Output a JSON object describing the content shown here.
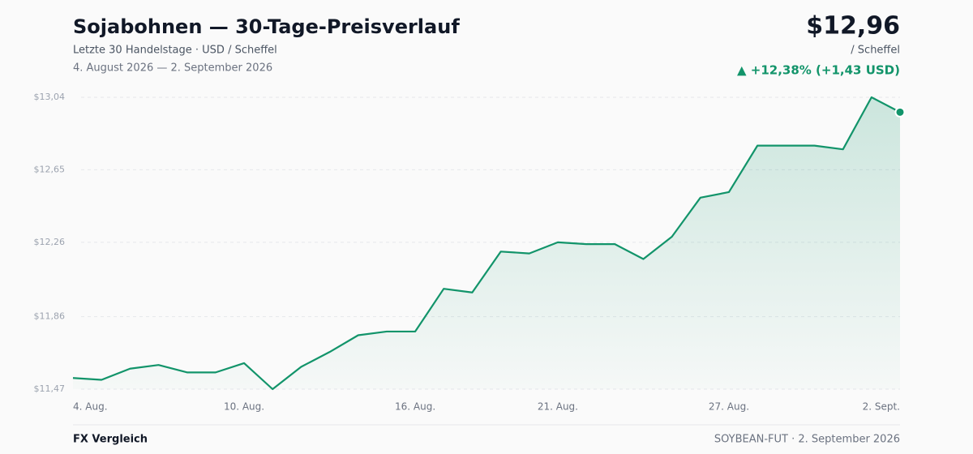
{
  "chart_data": {
    "type": "line",
    "title": "Sojabohnen — 30-Tage-Preisverlauf",
    "subtitle": "Letzte 30 Handelstage · USD / Scheffel",
    "date_range": "4. August 2026 — 2. September 2026",
    "price_label": "$12,96",
    "unit_label": "/ Scheffel",
    "change_label": "▲ +12,38% (+1,43 USD)",
    "categories": [
      "4. Aug.",
      null,
      null,
      null,
      null,
      null,
      "10. Aug.",
      null,
      null,
      null,
      null,
      null,
      "16. Aug.",
      null,
      null,
      null,
      null,
      "21. Aug.",
      null,
      null,
      null,
      null,
      null,
      "27. Aug.",
      null,
      null,
      null,
      null,
      null,
      "2. Sept."
    ],
    "values": [
      11.53,
      11.52,
      11.58,
      11.6,
      11.56,
      11.56,
      11.61,
      11.47,
      11.59,
      11.67,
      11.76,
      11.78,
      11.78,
      12.01,
      11.99,
      12.21,
      12.2,
      12.26,
      12.25,
      12.25,
      12.17,
      12.29,
      12.5,
      12.53,
      12.78,
      12.78,
      12.78,
      12.76,
      13.04,
      12.96
    ],
    "color": "#12946a",
    "ylim": [
      11.47,
      13.04
    ],
    "yticks": [
      {
        "value": 11.47,
        "label": "$11,47"
      },
      {
        "value": 11.86,
        "label": "$11,86"
      },
      {
        "value": 12.26,
        "label": "$12,26"
      },
      {
        "value": 12.65,
        "label": "$12,65"
      },
      {
        "value": 13.04,
        "label": "$13,04"
      }
    ],
    "grid": true
  },
  "footer": {
    "left": "FX Vergleich",
    "right": "SOYBEAN-FUT · 2. September 2026"
  }
}
